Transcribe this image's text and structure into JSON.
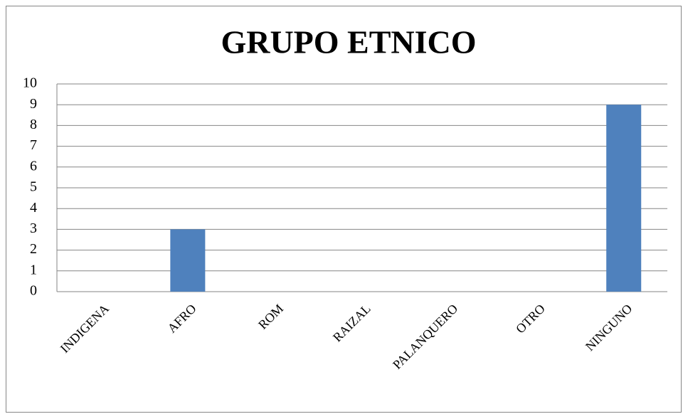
{
  "chart_data": {
    "type": "bar",
    "title": "GRUPO ETNICO",
    "categories": [
      "INDIGENA",
      "AFRO",
      "ROM",
      "RAIZAL",
      "PALANQUERO",
      "OTRO",
      "NINGUNO"
    ],
    "values": [
      0,
      3,
      0,
      0,
      0,
      0,
      9
    ],
    "color": "#4f81bd",
    "ylim": [
      0,
      10
    ],
    "yticks": [
      0,
      1,
      2,
      3,
      4,
      5,
      6,
      7,
      8,
      9,
      10
    ],
    "grid": true
  }
}
